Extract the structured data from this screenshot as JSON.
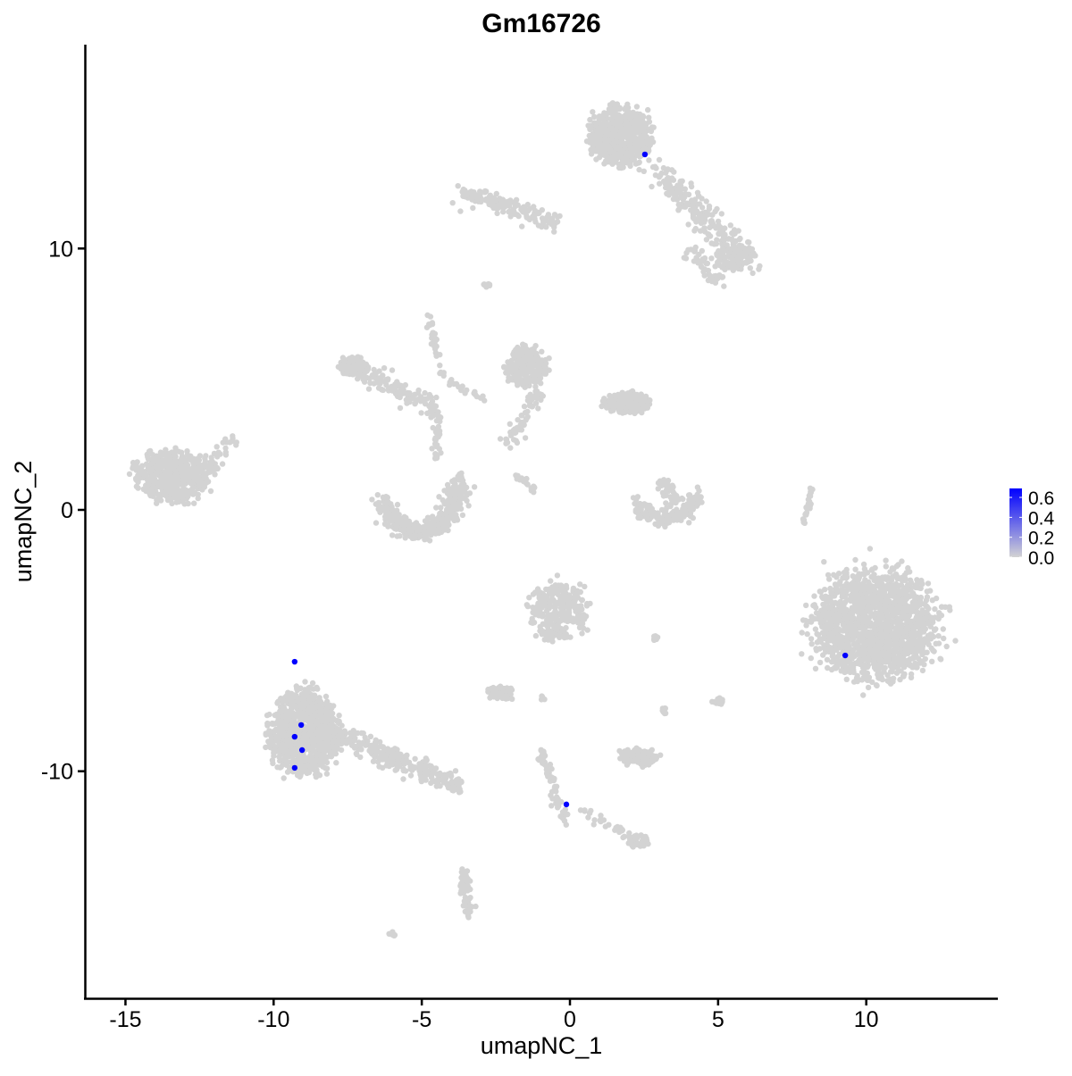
{
  "chart_data": {
    "type": "scatter",
    "title": "Gm16726",
    "xlabel": "umapNC_1",
    "ylabel": "umapNC_2",
    "xlim": [
      -16.5,
      14.5
    ],
    "ylim": [
      -17.6,
      17.7
    ],
    "xticks": [
      -15,
      -10,
      -5,
      0,
      5,
      10
    ],
    "yticks": [
      -10,
      0,
      10
    ],
    "grid": false,
    "colors": {
      "low": "#d3d3d3",
      "high": "#0000ff"
    },
    "legend": {
      "placement": "right",
      "ticks": [
        0.0,
        0.2,
        0.4,
        0.6
      ],
      "tick_labels": [
        "0.0",
        "0.2",
        "0.4",
        "0.6"
      ],
      "range": [
        0,
        0.69
      ]
    },
    "background_clusters": [
      {
        "center": [
          1.7,
          14.3
        ],
        "spread": [
          1.2,
          1.3
        ],
        "n": 600
      },
      {
        "from": [
          2.9,
          13.0
        ],
        "to": [
          6.0,
          9.6
        ],
        "width": 0.5,
        "n": 250
      },
      {
        "from": [
          -3.6,
          12.1
        ],
        "to": [
          -0.4,
          11.0
        ],
        "width": 0.35,
        "n": 150
      },
      {
        "center": [
          5.5,
          9.6
        ],
        "spread": [
          0.6,
          0.5
        ],
        "n": 100
      },
      {
        "from": [
          4.0,
          10.0
        ],
        "to": [
          5.0,
          8.8
        ],
        "width": 0.3,
        "n": 50
      },
      {
        "center": [
          -13.4,
          1.3
        ],
        "spread": [
          1.5,
          1.1
        ],
        "n": 500
      },
      {
        "from": [
          -12.3,
          1.5
        ],
        "to": [
          -11.3,
          2.8
        ],
        "width": 0.25,
        "n": 40
      },
      {
        "center": [
          -7.3,
          5.5
        ],
        "spread": [
          0.55,
          0.4
        ],
        "n": 150
      },
      {
        "from": [
          -7.0,
          5.3
        ],
        "to": [
          -4.5,
          3.8
        ],
        "width": 0.35,
        "n": 120
      },
      {
        "from": [
          -4.5,
          3.8
        ],
        "to": [
          -4.5,
          2.0
        ],
        "width": 0.15,
        "n": 35
      },
      {
        "from": [
          -4.75,
          7.5
        ],
        "to": [
          -4.3,
          4.9
        ],
        "width": 0.12,
        "n": 30
      },
      {
        "from": [
          -4.3,
          5.0
        ],
        "to": [
          -3.0,
          4.3
        ],
        "width": 0.15,
        "n": 20
      },
      {
        "arc": [
          -5.1,
          0.9
        ],
        "radius": [
          1.3,
          1.7
        ],
        "angles": [
          200,
          370
        ],
        "width": 0.35,
        "n": 450
      },
      {
        "center": [
          -1.45,
          5.5
        ],
        "spread": [
          0.8,
          0.9
        ],
        "n": 250
      },
      {
        "center": [
          1.9,
          4.1
        ],
        "spread": [
          0.85,
          0.45
        ],
        "n": 260
      },
      {
        "from": [
          -1.0,
          4.6
        ],
        "to": [
          -2.05,
          2.6
        ],
        "width": 0.25,
        "n": 60
      },
      {
        "from": [
          -1.9,
          1.4
        ],
        "to": [
          -1.15,
          0.7
        ],
        "width": 0.1,
        "n": 20
      },
      {
        "arc": [
          3.2,
          0.7
        ],
        "radius": [
          1.1,
          1.0
        ],
        "angles": [
          200,
          350
        ],
        "width": 0.3,
        "n": 150
      },
      {
        "from": [
          3.0,
          1.3
        ],
        "to": [
          3.6,
          0.2
        ],
        "width": 0.25,
        "n": 40
      },
      {
        "center": [
          10.3,
          -4.4
        ],
        "spread": [
          2.4,
          2.4
        ],
        "n": 1500
      },
      {
        "center": [
          -9.0,
          -8.5
        ],
        "spread": [
          1.3,
          1.9
        ],
        "n": 900
      },
      {
        "from": [
          -8.0,
          -8.6
        ],
        "to": [
          -3.7,
          -10.55
        ],
        "width": 0.4,
        "n": 260
      },
      {
        "center": [
          -0.4,
          -3.9
        ],
        "spread": [
          1.1,
          1.3
        ],
        "n": 300
      },
      {
        "center": [
          -2.35,
          -7.0
        ],
        "spread": [
          0.6,
          0.3
        ],
        "n": 60
      },
      {
        "center": [
          2.3,
          -9.45
        ],
        "spread": [
          0.75,
          0.35
        ],
        "n": 120
      },
      {
        "from": [
          -1.0,
          -9.2
        ],
        "to": [
          -0.1,
          -12.1
        ],
        "width": 0.15,
        "n": 70
      },
      {
        "from": [
          0.5,
          -11.5
        ],
        "to": [
          2.3,
          -12.7
        ],
        "width": 0.2,
        "n": 30
      },
      {
        "center": [
          2.3,
          -12.7
        ],
        "spread": [
          0.4,
          0.3
        ],
        "n": 40
      },
      {
        "from": [
          -3.6,
          -13.8
        ],
        "to": [
          -3.4,
          -15.5
        ],
        "width": 0.2,
        "n": 60
      },
      {
        "from": [
          8.2,
          1.0
        ],
        "to": [
          7.9,
          -0.5
        ],
        "width": 0.08,
        "n": 25
      },
      {
        "center": [
          -2.8,
          8.6
        ],
        "spread": [
          0.15,
          0.1
        ],
        "n": 10
      },
      {
        "center": [
          5.0,
          -7.3
        ],
        "spread": [
          0.2,
          0.15
        ],
        "n": 15
      },
      {
        "center": [
          3.2,
          -7.7
        ],
        "spread": [
          0.15,
          0.15
        ],
        "n": 8
      },
      {
        "center": [
          2.9,
          -4.9
        ],
        "spread": [
          0.12,
          0.1
        ],
        "n": 8
      },
      {
        "center": [
          -0.9,
          -7.2
        ],
        "spread": [
          0.1,
          0.1
        ],
        "n": 6
      },
      {
        "center": [
          -6.0,
          -16.2
        ],
        "spread": [
          0.15,
          0.1
        ],
        "n": 8
      }
    ],
    "expressed_points": [
      {
        "x": -9.29,
        "y": -5.81,
        "value": 0.69
      },
      {
        "x": -9.07,
        "y": -8.23,
        "value": 0.69
      },
      {
        "x": -9.29,
        "y": -8.68,
        "value": 0.69
      },
      {
        "x": -9.04,
        "y": -9.19,
        "value": 0.69
      },
      {
        "x": -9.29,
        "y": -9.87,
        "value": 0.69
      },
      {
        "x": -0.12,
        "y": -11.27,
        "value": 0.69
      },
      {
        "x": 2.53,
        "y": 13.6,
        "value": 0.69
      },
      {
        "x": 9.29,
        "y": -5.57,
        "value": 0.69
      }
    ]
  }
}
